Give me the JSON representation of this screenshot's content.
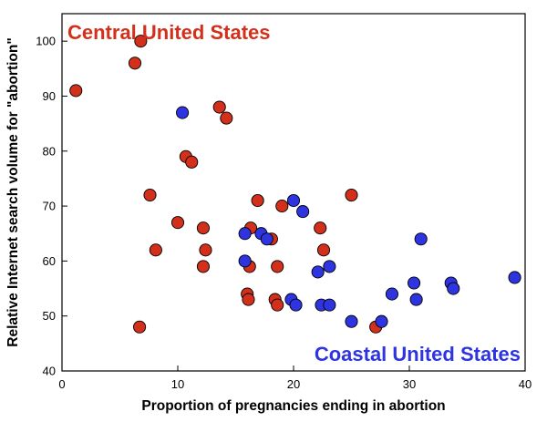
{
  "chart_data": {
    "type": "scatter",
    "xlabel": "Proportion of pregnancies ending in abortion",
    "ylabel": "Relative Internet search volume for \"abortion\"",
    "xlim": [
      0,
      40
    ],
    "ylim": [
      40,
      105
    ],
    "xticks": [
      "0",
      "10",
      "20",
      "30",
      "40"
    ],
    "yticks": [
      "40",
      "50",
      "60",
      "70",
      "80",
      "90",
      "100"
    ],
    "grid": false,
    "annotations": [
      {
        "text": "Central United States",
        "color": "#d3301b",
        "placement": "top-left"
      },
      {
        "text": "Coastal United States",
        "color": "#2e35e0",
        "placement": "bottom-right"
      }
    ],
    "series": [
      {
        "color": "#d3301b",
        "points": [
          [
            1.2,
            91
          ],
          [
            6.3,
            96
          ],
          [
            6.8,
            100
          ],
          [
            6.7,
            48
          ],
          [
            7.6,
            72
          ],
          [
            8.1,
            62
          ],
          [
            10.0,
            67
          ],
          [
            10.7,
            79
          ],
          [
            11.2,
            78
          ],
          [
            12.2,
            66
          ],
          [
            12.2,
            59
          ],
          [
            12.4,
            62
          ],
          [
            13.6,
            88
          ],
          [
            14.2,
            86
          ],
          [
            16.0,
            54
          ],
          [
            16.1,
            53
          ],
          [
            16.2,
            59
          ],
          [
            16.3,
            66
          ],
          [
            16.9,
            71
          ],
          [
            18.1,
            64
          ],
          [
            18.4,
            53
          ],
          [
            18.6,
            52
          ],
          [
            18.6,
            59
          ],
          [
            19.0,
            70
          ],
          [
            22.3,
            66
          ],
          [
            22.6,
            62
          ],
          [
            25.0,
            72
          ],
          [
            27.1,
            48
          ]
        ]
      },
      {
        "color": "#2e35e0",
        "points": [
          [
            10.4,
            87
          ],
          [
            15.8,
            65
          ],
          [
            15.8,
            60
          ],
          [
            17.2,
            65
          ],
          [
            17.7,
            64
          ],
          [
            19.8,
            53
          ],
          [
            20.0,
            71
          ],
          [
            20.2,
            52
          ],
          [
            20.8,
            69
          ],
          [
            22.1,
            58
          ],
          [
            22.4,
            52
          ],
          [
            23.1,
            59
          ],
          [
            23.1,
            52
          ],
          [
            25.0,
            49
          ],
          [
            27.6,
            49
          ],
          [
            28.5,
            54
          ],
          [
            30.4,
            56
          ],
          [
            30.6,
            53
          ],
          [
            31.0,
            64
          ],
          [
            33.6,
            56
          ],
          [
            33.8,
            55
          ],
          [
            39.1,
            57
          ]
        ]
      }
    ]
  }
}
